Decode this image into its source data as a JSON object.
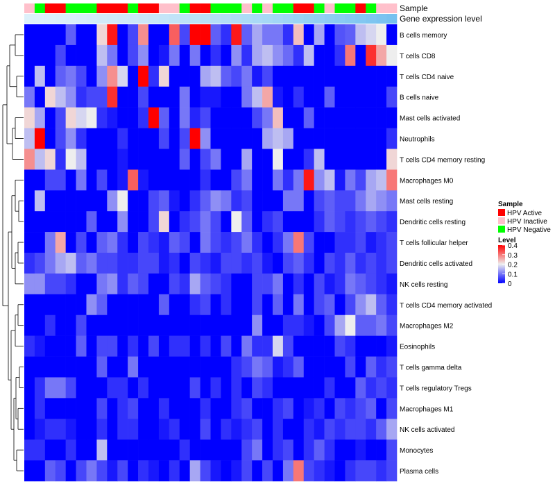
{
  "chart_data": {
    "type": "heatmap",
    "annotations": {
      "sample_label": "Sample",
      "expression_label": "Gene expression level",
      "sample_colors": [
        "#FFC0CB",
        "#00FF00",
        "#FF0000",
        "#FF0000",
        "#00FF00",
        "#00FF00",
        "#00FF00",
        "#FF0000",
        "#FF0000",
        "#FF0000",
        "#00FF00",
        "#FF0000",
        "#FF0000",
        "#FFC0CB",
        "#FFC0CB",
        "#00FF00",
        "#FF0000",
        "#FF0000",
        "#00FF00",
        "#00FF00",
        "#00FF00",
        "#FFC0CB",
        "#00FF00",
        "#FFC0CB",
        "#00FF00",
        "#00FF00",
        "#FF0000",
        "#FF0000",
        "#00FF00",
        "#FFC0CB",
        "#00FF00",
        "#00FF00",
        "#FF0000",
        "#00FF00",
        "#FFC0CB",
        "#FFC0CB"
      ],
      "expression_colors": [
        "#DDF1FB",
        "#DDF1FB",
        "#DCF0FB",
        "#DAEFFA",
        "#D8EEFA",
        "#D6EDFA",
        "#D4ECF9",
        "#D2EBF9",
        "#D0EAF9",
        "#CEE9F9",
        "#CCE8F9",
        "#CAE7F8",
        "#C7E6F8",
        "#C4E5F8",
        "#C1E4F8",
        "#BEE3F8",
        "#BBE2F7",
        "#B8E0F7",
        "#B5DFF7",
        "#B2DEF7",
        "#AFDCF6",
        "#ACDBF6",
        "#A9D9F6",
        "#A6D8F5",
        "#A2D6F5",
        "#9ED5F4",
        "#9AD3F4",
        "#96D1F3",
        "#92CFF3",
        "#8ECDF2",
        "#8ACBF2",
        "#86C9F1",
        "#82C7F1",
        "#7EC5F0",
        "#7AC3F0",
        "#76C1EF"
      ]
    },
    "legend": {
      "sample_title": "Sample",
      "sample_entries": [
        {
          "label": "HPV Active",
          "color": "#FF0000"
        },
        {
          "label": "HPV Inactive",
          "color": "#FFC0CB"
        },
        {
          "label": "HPV Negative",
          "color": "#00FF00"
        }
      ],
      "level_title": "Level",
      "level_ticks": [
        "0.4",
        "0.3",
        "0.2",
        "0.1",
        "0"
      ],
      "level_range": [
        0,
        0.4
      ],
      "position": "right"
    },
    "rows": [
      {
        "name": "B cells memory",
        "values": [
          0,
          0,
          0,
          0,
          0.08,
          0,
          0,
          0.22,
          0.38,
          0,
          0.06,
          0.28,
          0,
          0,
          0.32,
          0.06,
          0.4,
          0.4,
          0.08,
          0.04,
          0.38,
          0.08,
          0.14,
          0.1,
          0.1,
          0.04,
          0.24,
          0,
          0.14,
          0,
          0.07,
          0.08,
          0.16,
          0.18,
          0.2,
          0
        ]
      },
      {
        "name": "T cells CD8",
        "values": [
          0,
          0,
          0,
          0.06,
          0,
          0,
          0,
          0.16,
          0.1,
          0,
          0.06,
          0.12,
          0,
          0.02,
          0.1,
          0,
          0.1,
          0,
          0.04,
          0,
          0.12,
          0.04,
          0.14,
          0.16,
          0.12,
          0.09,
          0.04,
          0.16,
          0,
          0,
          0.04,
          0.3,
          0,
          0.36,
          0.26,
          0.2
        ]
      },
      {
        "name": "T cells CD4 naive",
        "values": [
          0,
          0.16,
          0,
          0.08,
          0.1,
          0.06,
          0,
          0.12,
          0.28,
          0.18,
          0,
          0.4,
          0.04,
          0.22,
          0,
          0,
          0,
          0.14,
          0.16,
          0.08,
          0.06,
          0.1,
          0.02,
          0.06,
          0,
          0,
          0,
          0,
          0,
          0,
          0,
          0,
          0,
          0,
          0,
          0
        ]
      },
      {
        "name": "B cells naive",
        "values": [
          0.1,
          0,
          0.22,
          0.16,
          0.12,
          0.04,
          0.06,
          0.06,
          0.36,
          0,
          0,
          0.06,
          0,
          0,
          0,
          0.1,
          0,
          0.02,
          0.02,
          0,
          0,
          0.1,
          0.16,
          0.26,
          0.02,
          0,
          0.04,
          0,
          0,
          0.08,
          0,
          0,
          0,
          0,
          0,
          0.06
        ]
      },
      {
        "name": "Mast cells activated",
        "values": [
          0.22,
          0.14,
          0,
          0.06,
          0.22,
          0.18,
          0.2,
          0.04,
          0.02,
          0,
          0,
          0.04,
          0.4,
          0.08,
          0,
          0.1,
          0.03,
          0.06,
          0,
          0,
          0,
          0,
          0.06,
          0.1,
          0.24,
          0,
          0,
          0.08,
          0,
          0,
          0,
          0,
          0,
          0,
          0,
          0
        ]
      },
      {
        "name": "Neutrophils",
        "values": [
          0.16,
          0.4,
          0,
          0.06,
          0.12,
          0.04,
          0,
          0,
          0,
          0.04,
          0,
          0,
          0,
          0.06,
          0,
          0.06,
          0.4,
          0.12,
          0,
          0,
          0,
          0,
          0,
          0.14,
          0.16,
          0.14,
          0,
          0,
          0,
          0,
          0,
          0,
          0,
          0,
          0,
          0.04
        ]
      },
      {
        "name": "T cells CD4 memory resting",
        "values": [
          0.28,
          0.16,
          0.22,
          0.04,
          0.2,
          0.16,
          0,
          0,
          0,
          0.02,
          0,
          0,
          0,
          0,
          0,
          0.08,
          0,
          0.06,
          0.1,
          0,
          0,
          0.14,
          0,
          0,
          0.2,
          0,
          0,
          0.04,
          0.16,
          0,
          0,
          0,
          0,
          0,
          0,
          0.22
        ]
      },
      {
        "name": "Macrophages M0",
        "values": [
          0,
          0,
          0.06,
          0.06,
          0,
          0.1,
          0,
          0.06,
          0,
          0.02,
          0.32,
          0.02,
          0,
          0,
          0,
          0,
          0,
          0.04,
          0,
          0,
          0.06,
          0.1,
          0,
          0,
          0.1,
          0.04,
          0.1,
          0.38,
          0.12,
          0.16,
          0.02,
          0.1,
          0.06,
          0.14,
          0.16,
          0.3
        ]
      },
      {
        "name": "Mast cells resting",
        "values": [
          0,
          0.16,
          0,
          0,
          0,
          0,
          0,
          0,
          0.12,
          0.2,
          0,
          0,
          0.06,
          0.08,
          0.02,
          0,
          0.04,
          0.08,
          0.12,
          0.1,
          0.04,
          0.06,
          0,
          0,
          0,
          0.1,
          0.1,
          0,
          0.06,
          0.08,
          0.06,
          0.06,
          0.1,
          0.14,
          0.12,
          0.1
        ]
      },
      {
        "name": "Dendritic cells resting",
        "values": [
          0,
          0,
          0,
          0,
          0,
          0,
          0.08,
          0,
          0,
          0.12,
          0,
          0,
          0.06,
          0.22,
          0,
          0.04,
          0.06,
          0.1,
          0.06,
          0,
          0.2,
          0.08,
          0,
          0.04,
          0.06,
          0,
          0,
          0,
          0.04,
          0.08,
          0.06,
          0.04,
          0.06,
          0.08,
          0.06,
          0.04
        ]
      },
      {
        "name": "T cells follicular helper",
        "values": [
          0,
          0,
          0.1,
          0.26,
          0,
          0.06,
          0,
          0.08,
          0.1,
          0.04,
          0,
          0.06,
          0.04,
          0.02,
          0.08,
          0.06,
          0,
          0.1,
          0.06,
          0.04,
          0.06,
          0.1,
          0.04,
          0,
          0.04,
          0.1,
          0.3,
          0.06,
          0,
          0,
          0.04,
          0.04,
          0.06,
          0.02,
          0.04,
          0.06
        ]
      },
      {
        "name": "Dendritic cells activated",
        "values": [
          0.04,
          0.06,
          0.1,
          0.14,
          0.16,
          0.08,
          0.1,
          0.06,
          0.06,
          0.04,
          0.04,
          0.06,
          0.06,
          0.02,
          0.04,
          0,
          0.06,
          0.04,
          0.02,
          0.06,
          0.06,
          0.04,
          0.06,
          0.02,
          0,
          0.06,
          0.08,
          0.04,
          0,
          0.06,
          0.04,
          0.08,
          0.04,
          0.06,
          0.04,
          0.06
        ]
      },
      {
        "name": "NK cells resting",
        "values": [
          0.12,
          0.12,
          0.06,
          0.06,
          0.04,
          0,
          0,
          0.1,
          0.12,
          0.04,
          0.08,
          0.06,
          0,
          0,
          0.06,
          0.04,
          0.14,
          0.08,
          0.06,
          0.04,
          0,
          0,
          0.06,
          0.06,
          0.1,
          0,
          0.04,
          0,
          0.06,
          0.02,
          0.04,
          0.1,
          0.08,
          0.06,
          0.04,
          0.02
        ]
      },
      {
        "name": "T cells CD4 memory activated",
        "values": [
          0,
          0,
          0,
          0,
          0,
          0,
          0.12,
          0.08,
          0,
          0,
          0,
          0,
          0,
          0.08,
          0,
          0,
          0.04,
          0.06,
          0,
          0.04,
          0,
          0,
          0.06,
          0,
          0.08,
          0,
          0.1,
          0,
          0.06,
          0.08,
          0,
          0.06,
          0.12,
          0.16,
          0.08,
          0.04
        ]
      },
      {
        "name": "Macrophages M2",
        "values": [
          0,
          0,
          0.04,
          0,
          0,
          0.06,
          0,
          0,
          0,
          0,
          0,
          0,
          0,
          0,
          0,
          0,
          0,
          0,
          0,
          0,
          0,
          0,
          0.12,
          0,
          0,
          0.04,
          0.04,
          0.02,
          0,
          0.06,
          0.14,
          0.2,
          0.08,
          0.08,
          0.1,
          0.06
        ]
      },
      {
        "name": "Eosinophils",
        "values": [
          0.04,
          0.02,
          0,
          0,
          0,
          0.08,
          0,
          0.06,
          0.06,
          0,
          0.04,
          0,
          0.06,
          0,
          0.04,
          0.04,
          0,
          0.04,
          0,
          0.06,
          0,
          0.1,
          0.04,
          0.04,
          0.18,
          0.06,
          0,
          0,
          0,
          0,
          0.06,
          0.04,
          0,
          0,
          0,
          0.02
        ]
      },
      {
        "name": "T cells gamma delta",
        "values": [
          0,
          0,
          0,
          0,
          0,
          0,
          0,
          0.08,
          0,
          0,
          0.1,
          0,
          0,
          0,
          0,
          0,
          0,
          0,
          0,
          0,
          0.04,
          0.06,
          0.1,
          0.08,
          0.02,
          0.04,
          0.08,
          0,
          0,
          0,
          0,
          0.06,
          0,
          0.08,
          0.04,
          0.06
        ]
      },
      {
        "name": "T cells regulatory  Tregs",
        "values": [
          0,
          0.04,
          0.1,
          0.1,
          0.06,
          0,
          0,
          0,
          0.04,
          0.04,
          0,
          0.04,
          0,
          0,
          0,
          0,
          0.06,
          0,
          0.04,
          0,
          0.04,
          0,
          0.06,
          0.04,
          0,
          0,
          0,
          0,
          0,
          0.04,
          0,
          0,
          0.08,
          0.04,
          0.06,
          0.04
        ]
      },
      {
        "name": "Macrophages M1",
        "values": [
          0,
          0.04,
          0,
          0,
          0,
          0,
          0,
          0.06,
          0,
          0.04,
          0.06,
          0,
          0,
          0.04,
          0,
          0,
          0,
          0.04,
          0,
          0,
          0.04,
          0.06,
          0,
          0,
          0.04,
          0.06,
          0,
          0.02,
          0.04,
          0,
          0.06,
          0.04,
          0.06,
          0.08,
          0,
          0.06
        ]
      },
      {
        "name": "NK cells activated",
        "values": [
          0,
          0.02,
          0.04,
          0.04,
          0.02,
          0,
          0,
          0.04,
          0,
          0.04,
          0.04,
          0,
          0,
          0.02,
          0.04,
          0,
          0,
          0.06,
          0,
          0.04,
          0.02,
          0.04,
          0.06,
          0,
          0.04,
          0,
          0,
          0.04,
          0.02,
          0.06,
          0.04,
          0.06,
          0.06,
          0.04,
          0.08,
          0.14
        ]
      },
      {
        "name": "Monocytes",
        "values": [
          0.04,
          0.04,
          0,
          0,
          0.04,
          0,
          0,
          0.16,
          0,
          0,
          0,
          0,
          0,
          0,
          0,
          0.04,
          0,
          0,
          0,
          0,
          0,
          0.06,
          0.1,
          0,
          0.04,
          0.06,
          0,
          0.04,
          0.08,
          0.04,
          0,
          0,
          0.02,
          0,
          0,
          0.06
        ]
      },
      {
        "name": "Plasma cells",
        "values": [
          0,
          0,
          0.08,
          0.06,
          0,
          0.06,
          0.1,
          0.06,
          0.02,
          0.06,
          0,
          0.04,
          0.02,
          0,
          0.04,
          0,
          0.14,
          0.06,
          0.02,
          0,
          0.02,
          0.06,
          0,
          0.06,
          0,
          0.1,
          0.3,
          0.06,
          0.04,
          0.02,
          0,
          0.04,
          0.06,
          0.06,
          0.04,
          0.06
        ]
      }
    ]
  }
}
